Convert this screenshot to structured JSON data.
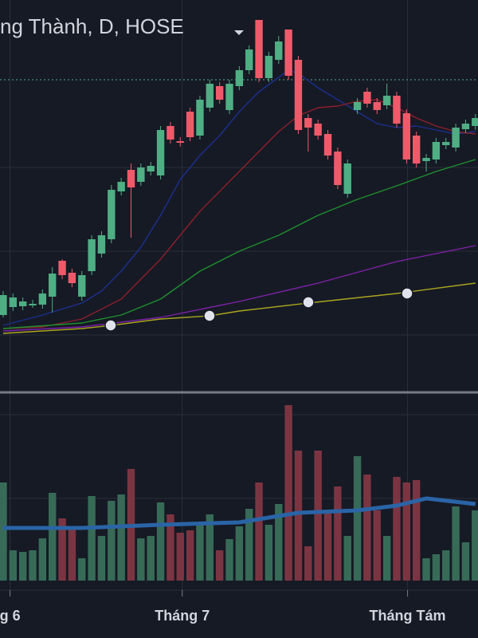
{
  "chart_data": {
    "type": "candlestick",
    "title": "ng Thành, D, HOSE",
    "x": [
      0,
      1,
      2,
      3,
      4,
      5,
      6,
      7,
      8,
      9,
      10,
      11,
      12,
      13,
      14,
      15,
      16,
      17,
      18,
      19,
      20,
      21,
      22,
      23,
      24,
      25,
      26,
      27,
      28,
      29,
      30,
      31,
      32,
      33,
      34,
      35,
      36,
      37,
      38,
      39,
      40,
      41,
      42,
      43,
      44,
      45,
      46,
      47,
      48
    ],
    "open": [
      9.5,
      10.5,
      10.6,
      10.7,
      10.8,
      11.8,
      16.3,
      14.8,
      11.8,
      15.0,
      17.2,
      19.0,
      25.0,
      27.7,
      26.2,
      27.5,
      27.0,
      33.2,
      31.3,
      35.0,
      32.0,
      35.5,
      38.2,
      35.2,
      38.2,
      40.2,
      46.5,
      39.2,
      41.5,
      45.3,
      41.5,
      34.2,
      33.5,
      32.2,
      30.0,
      24.7,
      35.2,
      37.5,
      36.2,
      35.8,
      37.0,
      34.8,
      32.0,
      28.8,
      29.0,
      30.8,
      30.5,
      32.8,
      33.2
    ],
    "high": [
      12.5,
      12.2,
      11.7,
      11.4,
      12.7,
      15.5,
      16.5,
      15.3,
      15.0,
      19.5,
      20.0,
      25.8,
      26.7,
      28.5,
      28.5,
      28.7,
      33.2,
      33.7,
      31.8,
      35.5,
      37.0,
      39.0,
      38.7,
      39.0,
      40.7,
      43.3,
      46.5,
      42.5,
      44.5,
      45.3,
      42.0,
      34.7,
      34.0,
      32.7,
      30.5,
      29.0,
      36.7,
      38.0,
      36.7,
      38.5,
      37.5,
      35.3,
      32.5,
      29.7,
      31.7,
      31.7,
      33.5,
      34.0,
      34.7
    ],
    "low": [
      9.2,
      10.0,
      10.1,
      10.4,
      10.3,
      9.8,
      14.0,
      13.0,
      11.3,
      14.5,
      16.7,
      18.5,
      24.5,
      19.2,
      25.7,
      27.0,
      26.5,
      31.0,
      30.6,
      31.3,
      31.5,
      35.0,
      36.0,
      34.7,
      37.7,
      39.7,
      38.7,
      38.7,
      41.0,
      39.0,
      32.2,
      30.0,
      31.5,
      29.0,
      25.3,
      24.2,
      34.7,
      35.5,
      34.7,
      35.3,
      33.0,
      28.5,
      28.0,
      27.5,
      28.5,
      30.3,
      30.0,
      32.3,
      32.7
    ],
    "close": [
      12.0,
      11.7,
      11.2,
      10.9,
      12.2,
      14.7,
      14.5,
      13.5,
      14.5,
      19.0,
      19.5,
      25.2,
      26.2,
      25.5,
      28.0,
      28.2,
      32.7,
      31.5,
      31.1,
      31.8,
      36.5,
      38.5,
      36.5,
      38.5,
      40.2,
      42.8,
      39.2,
      42.0,
      43.8,
      39.5,
      32.7,
      33.0,
      32.0,
      29.5,
      25.8,
      28.5,
      36.2,
      36.0,
      35.2,
      37.0,
      33.5,
      29.0,
      28.5,
      29.2,
      31.2,
      31.2,
      33.0,
      33.5,
      34.2
    ],
    "up_color": "#4fae84",
    "down_color": "#ef5a6a",
    "xlim": [
      -0.32,
      48.26
    ],
    "xticks": [
      {
        "value": 0.7,
        "label": "g 6"
      },
      {
        "value": 18.2,
        "label": "Tháng 7"
      },
      {
        "value": 41.1,
        "label": "Tháng Tám"
      }
    ],
    "ylim": [
      0,
      49
    ],
    "price_line": 39.0,
    "lines": [
      {
        "color": "#1c2f8f",
        "x": [
          0,
          4,
          8,
          10,
          12,
          14,
          16,
          18,
          20,
          22,
          24,
          26,
          28,
          29,
          30,
          32,
          34,
          36,
          38,
          40,
          42,
          44,
          46,
          48
        ],
        "values": [
          8.2,
          9.5,
          11.0,
          12.5,
          15.0,
          18.0,
          22.0,
          26.5,
          29.5,
          32.0,
          35.0,
          37.5,
          39.3,
          40.2,
          39.8,
          38.0,
          36.5,
          35.0,
          33.5,
          33.0,
          33.2,
          32.7,
          32.2,
          32.5
        ]
      },
      {
        "color": "#8e1f2c",
        "x": [
          0,
          4,
          8,
          12,
          16,
          20,
          24,
          28,
          30,
          32,
          34,
          36,
          38,
          40,
          42,
          44,
          46,
          48
        ],
        "values": [
          7.8,
          8.0,
          9.0,
          11.5,
          16.5,
          22.5,
          27.5,
          32.5,
          34.5,
          35.5,
          35.7,
          36.3,
          36.5,
          35.5,
          34.2,
          33.2,
          32.5,
          32.2
        ]
      },
      {
        "color": "#1f8f2e",
        "x": [
          0,
          8,
          12,
          16,
          20,
          24,
          28,
          32,
          36,
          40,
          44,
          48
        ],
        "values": [
          7.8,
          8.5,
          9.5,
          11.5,
          15.0,
          17.5,
          19.5,
          22.0,
          24.0,
          25.7,
          27.5,
          29.0
        ]
      },
      {
        "color": "#7e22a8",
        "x": [
          0,
          8,
          16,
          24,
          32,
          40,
          48
        ],
        "values": [
          7.5,
          8.0,
          9.2,
          11.2,
          13.5,
          16.2,
          18.2
        ]
      },
      {
        "color": "#a9a41f",
        "x": [
          0,
          8,
          11,
          16,
          21,
          24,
          31,
          40,
          48
        ],
        "values": [
          7.2,
          7.8,
          8.2,
          9.0,
          9.4,
          10.0,
          11.0,
          12.2,
          13.5
        ]
      }
    ],
    "volume": {
      "values": [
        12.3,
        3.8,
        3.6,
        3.8,
        5.3,
        11.0,
        7.8,
        6.8,
        2.8,
        10.6,
        5.6,
        10.0,
        10.8,
        14.0,
        5.3,
        5.6,
        9.8,
        8.3,
        6.0,
        6.3,
        7.3,
        8.3,
        3.8,
        5.2,
        6.8,
        9.0,
        12.3,
        7.0,
        9.6,
        22.0,
        16.3,
        4.3,
        16.3,
        8.8,
        11.8,
        5.6,
        15.6,
        13.3,
        8.8,
        5.6,
        13.0,
        12.3,
        12.6,
        2.8,
        3.3,
        3.8,
        9.3,
        4.8,
        8.8
      ],
      "ylim": [
        0,
        23.3
      ],
      "up_color": "#376b57",
      "down_color": "#7b3542",
      "line": {
        "color": "#2a64a6",
        "x": [
          0,
          8,
          16,
          24,
          30,
          36,
          40,
          43,
          48
        ],
        "values": [
          6.6,
          6.6,
          7.0,
          7.3,
          8.5,
          8.8,
          9.4,
          10.3,
          9.6
        ]
      }
    }
  }
}
